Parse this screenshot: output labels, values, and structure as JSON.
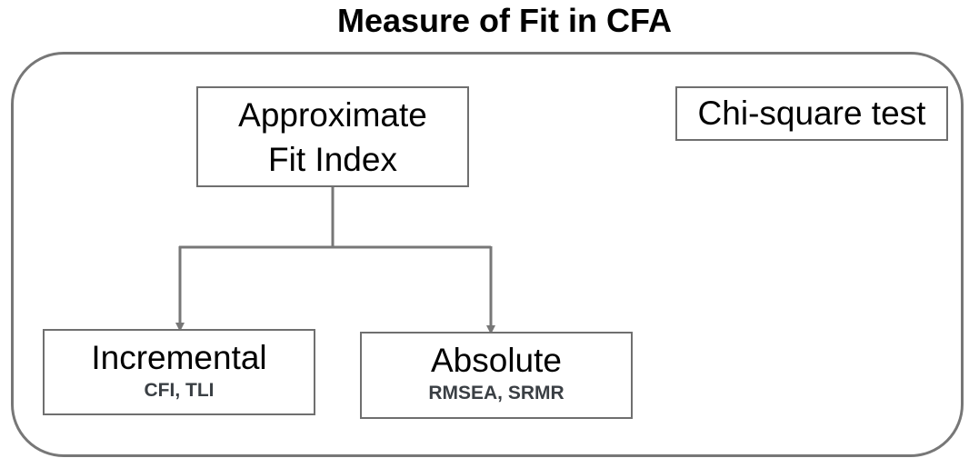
{
  "title": "Measure of Fit in CFA",
  "nodes": {
    "approximate": {
      "line1": "Approximate",
      "line2": "Fit Index"
    },
    "chi_square": {
      "label": "Chi-square test"
    },
    "incremental": {
      "label": "Incremental",
      "indices": "CFI, TLI"
    },
    "absolute": {
      "label": "Absolute",
      "indices": "RMSEA, SRMR"
    }
  },
  "edges": [
    {
      "from": "Approximate Fit Index",
      "to": "Incremental"
    },
    {
      "from": "Approximate Fit Index",
      "to": "Absolute"
    }
  ],
  "colors": {
    "frame": "#777777",
    "box_border": "#6f6f6f",
    "connector": "#777777",
    "sub_label": "#3a3f44"
  }
}
